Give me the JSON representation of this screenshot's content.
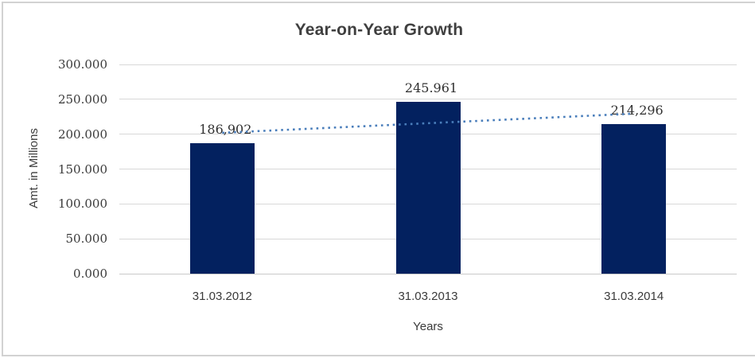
{
  "chart_data": {
    "type": "bar",
    "title": "Year-on-Year Growth",
    "categories": [
      "31.03.2012",
      "31.03.2013",
      "31.03.2014"
    ],
    "values": [
      186.902,
      245.961,
      214.296
    ],
    "value_labels": [
      "186,902",
      "245.961",
      "214,296"
    ],
    "xlabel": "Years",
    "ylabel": "Amt. in Millions",
    "ylim": [
      0,
      300
    ],
    "ytick_labels": [
      "300.000",
      "250.000",
      "200.000",
      "150.000",
      "100.000",
      "50.000",
      "0.000"
    ],
    "grid": true,
    "legend": "none",
    "trendline": {
      "type": "linear",
      "style": "dotted"
    },
    "colors": {
      "bar": "#03215F",
      "trendline": "#4A7EBB",
      "gridline": "#D8D8D8",
      "axis_line": "#C9C9C9",
      "text": "#3A3A3A"
    }
  }
}
